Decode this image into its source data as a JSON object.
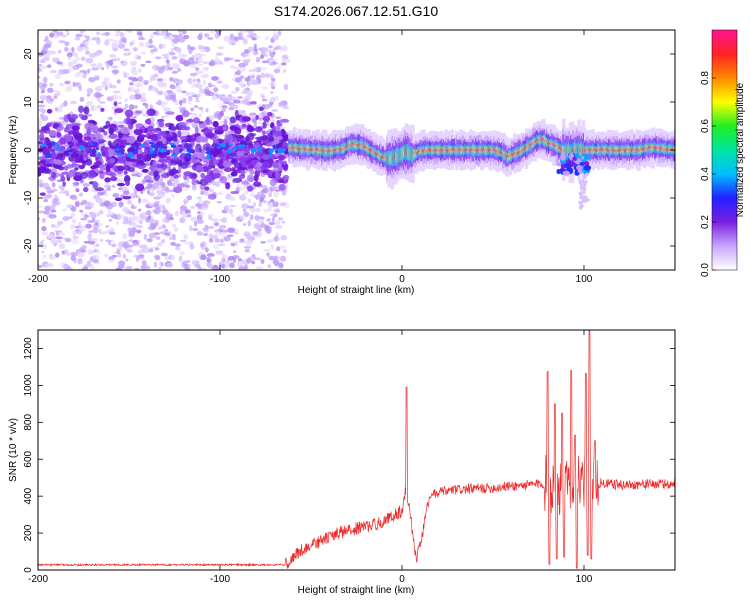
{
  "figure": {
    "title": "S174.2026.067.12.51.G10"
  },
  "chart_data": [
    {
      "type": "heatmap",
      "name": "spectrogram",
      "xlabel": "Height of straight line (km)",
      "ylabel": "Frequency (Hz)",
      "xlim": [
        -200,
        150
      ],
      "ylim": [
        -25,
        25
      ],
      "xticks": [
        -200,
        -100,
        0,
        100
      ],
      "yticks": [
        -20,
        -10,
        0,
        10,
        20
      ],
      "colorbar": {
        "label": "Normalized spectral amplitude",
        "range": [
          0,
          1
        ],
        "ticks": [
          0.0,
          0.2,
          0.4,
          0.6,
          0.8
        ],
        "colormap": [
          "#ffffff",
          "#c9a6ff",
          "#7b1fe0",
          "#2020ff",
          "#00bfff",
          "#00e5a0",
          "#22ee22",
          "#ffff00",
          "#ff8800",
          "#ff2222",
          "#ff1493"
        ]
      },
      "ridge_center": [
        [
          -62,
          0.5
        ],
        [
          -55,
          0.3
        ],
        [
          -48,
          0.0
        ],
        [
          -40,
          -0.2
        ],
        [
          -32,
          0.3
        ],
        [
          -28,
          1.2
        ],
        [
          -22,
          1.0
        ],
        [
          -18,
          0.2
        ],
        [
          -14,
          -0.8
        ],
        [
          -10,
          -1.6
        ],
        [
          -6,
          -1.8
        ],
        [
          -2,
          -1.2
        ],
        [
          2,
          -0.4
        ],
        [
          6,
          -1.0
        ],
        [
          10,
          -0.2
        ],
        [
          14,
          0.0
        ],
        [
          20,
          0.0
        ],
        [
          30,
          0.0
        ],
        [
          40,
          0.0
        ],
        [
          50,
          0.0
        ],
        [
          55,
          -0.5
        ],
        [
          58,
          -1.5
        ],
        [
          62,
          -0.8
        ],
        [
          66,
          0.0
        ],
        [
          70,
          0.8
        ],
        [
          74,
          2.0
        ],
        [
          78,
          2.2
        ],
        [
          80,
          1.5
        ],
        [
          84,
          1.0
        ],
        [
          88,
          0.0
        ],
        [
          92,
          -0.5
        ],
        [
          96,
          0.0
        ],
        [
          102,
          0.0
        ],
        [
          110,
          0.0
        ],
        [
          120,
          0.0
        ],
        [
          130,
          0.0
        ],
        [
          136,
          0.5
        ],
        [
          140,
          0.5
        ],
        [
          145,
          0.2
        ],
        [
          150,
          0.0
        ]
      ],
      "noise_region_x": [
        -200,
        -63
      ],
      "noise_band_hz": [
        -6,
        6
      ]
    },
    {
      "type": "line",
      "name": "snr",
      "xlabel": "Height of straight line (km)",
      "ylabel": "SNR (10 * v/v)",
      "xlim": [
        -200,
        150
      ],
      "ylim": [
        0,
        1300
      ],
      "xticks": [
        -200,
        -100,
        0,
        100
      ],
      "yticks": [
        0,
        200,
        400,
        600,
        800,
        1000,
        1200
      ],
      "color": "#ee2a2a",
      "baseline": [
        [
          -200,
          28
        ],
        [
          -64,
          28
        ],
        [
          -62,
          50
        ],
        [
          -55,
          110
        ],
        [
          -45,
          155
        ],
        [
          -35,
          200
        ],
        [
          -25,
          225
        ],
        [
          -15,
          245
        ],
        [
          -8,
          275
        ],
        [
          -4,
          300
        ],
        [
          0,
          320
        ],
        [
          2,
          430
        ],
        [
          4,
          360
        ],
        [
          6,
          180
        ],
        [
          8,
          70
        ],
        [
          10,
          130
        ],
        [
          12,
          240
        ],
        [
          14,
          360
        ],
        [
          18,
          415
        ],
        [
          30,
          435
        ],
        [
          50,
          445
        ],
        [
          60,
          455
        ],
        [
          70,
          460
        ],
        [
          78,
          470
        ],
        [
          82,
          455
        ],
        [
          90,
          450
        ],
        [
          100,
          465
        ],
        [
          110,
          470
        ],
        [
          120,
          460
        ],
        [
          135,
          465
        ],
        [
          150,
          465
        ]
      ],
      "peaks": [
        {
          "x": 2.5,
          "y": 990
        },
        {
          "x": 80,
          "y": 1075
        },
        {
          "x": 84,
          "y": 900
        },
        {
          "x": 88,
          "y": 850
        },
        {
          "x": 93,
          "y": 1080
        },
        {
          "x": 95,
          "y": 730
        },
        {
          "x": 101,
          "y": 1065
        },
        {
          "x": 103,
          "y": 1300
        },
        {
          "x": 106,
          "y": 700
        }
      ],
      "dips": [
        {
          "x": 81,
          "y": 30
        },
        {
          "x": 85,
          "y": 60
        },
        {
          "x": 89,
          "y": 70
        },
        {
          "x": 96,
          "y": 10
        },
        {
          "x": 102,
          "y": 80
        },
        {
          "x": 104,
          "y": 60
        }
      ]
    }
  ]
}
